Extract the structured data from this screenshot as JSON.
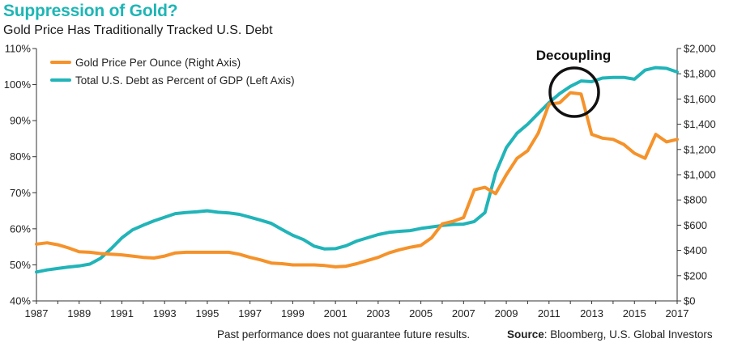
{
  "title": "Suppression of Gold?",
  "subtitle": "Gold Price Has Traditionally Tracked U.S. Debt",
  "footnote": "Past performance does not guarantee future results.",
  "source_label": "Source",
  "source_text": ": Bloomberg, U.S. Global Investors",
  "colors": {
    "title": "#1fb5b5",
    "gold": "#f5922a",
    "debt": "#21b4b8",
    "axis": "#333333"
  },
  "chart_data": {
    "type": "line",
    "annotation": "Decoupling",
    "x_ticks": [
      "1987",
      "1989",
      "1991",
      "1993",
      "1995",
      "1997",
      "1999",
      "2001",
      "2003",
      "2005",
      "2007",
      "2009",
      "2011",
      "2013",
      "2015",
      "2017"
    ],
    "left_axis": {
      "ylim": [
        40,
        110
      ],
      "ticks": [
        "40%",
        "50%",
        "60%",
        "70%",
        "80%",
        "90%",
        "100%",
        "110%"
      ]
    },
    "right_axis": {
      "ylim": [
        0,
        2000
      ],
      "ticks": [
        "$0",
        "$200",
        "$400",
        "$600",
        "$800",
        "$1,000",
        "$1,200",
        "$1,400",
        "$1,600",
        "$1,800",
        "$2,000"
      ]
    },
    "series": [
      {
        "name": "Gold Price Per Ounce (Right Axis)",
        "axis": "right",
        "x": [
          1987,
          1987.5,
          1988,
          1988.5,
          1989,
          1989.5,
          1990,
          1990.5,
          1991,
          1991.5,
          1992,
          1992.5,
          1993,
          1993.5,
          1994,
          1994.5,
          1995,
          1995.5,
          1996,
          1996.5,
          1997,
          1997.5,
          1998,
          1998.5,
          1999,
          1999.5,
          2000,
          2000.5,
          2001,
          2001.5,
          2002,
          2002.5,
          2003,
          2003.5,
          2004,
          2004.5,
          2005,
          2005.5,
          2006,
          2006.5,
          2007,
          2007.5,
          2008,
          2008.5,
          2009,
          2009.5,
          2010,
          2010.5,
          2011,
          2011.5,
          2012,
          2012.5,
          2013,
          2013.5,
          2014,
          2014.5,
          2015,
          2015.5,
          2016,
          2016.5,
          2017
        ],
        "values": [
          450,
          460,
          445,
          420,
          390,
          385,
          375,
          370,
          365,
          355,
          345,
          340,
          355,
          380,
          385,
          385,
          385,
          385,
          385,
          370,
          345,
          325,
          300,
          295,
          285,
          285,
          285,
          280,
          270,
          275,
          295,
          320,
          345,
          380,
          405,
          425,
          440,
          500,
          610,
          630,
          660,
          880,
          900,
          850,
          1000,
          1130,
          1190,
          1330,
          1560,
          1570,
          1650,
          1640,
          1320,
          1290,
          1280,
          1240,
          1170,
          1130,
          1320,
          1260,
          1280
        ]
      },
      {
        "name": "Total U.S. Debt as Percent of GDP (Left Axis)",
        "axis": "left",
        "x": [
          1987,
          1987.5,
          1988,
          1988.5,
          1989,
          1989.5,
          1990,
          1990.5,
          1991,
          1991.5,
          1992,
          1992.5,
          1993,
          1993.5,
          1994,
          1994.5,
          1995,
          1995.5,
          1996,
          1996.5,
          1997,
          1997.5,
          1998,
          1998.5,
          1999,
          1999.5,
          2000,
          2000.5,
          2001,
          2001.5,
          2002,
          2002.5,
          2003,
          2003.5,
          2004,
          2004.5,
          2005,
          2005.5,
          2006,
          2006.5,
          2007,
          2007.5,
          2008,
          2008.5,
          2009,
          2009.5,
          2010,
          2010.5,
          2011,
          2011.5,
          2012,
          2012.5,
          2013,
          2013.5,
          2014,
          2014.5,
          2015,
          2015.5,
          2016,
          2016.5,
          2017
        ],
        "values": [
          48.0,
          48.6,
          49.0,
          49.4,
          49.7,
          50.2,
          51.8,
          54.5,
          57.5,
          59.7,
          61.0,
          62.2,
          63.2,
          64.2,
          64.5,
          64.7,
          65.0,
          64.6,
          64.4,
          64.0,
          63.2,
          62.4,
          61.5,
          59.8,
          58.2,
          57.0,
          55.2,
          54.4,
          54.5,
          55.3,
          56.6,
          57.5,
          58.4,
          59.0,
          59.3,
          59.5,
          60.1,
          60.5,
          60.9,
          61.2,
          61.3,
          62.0,
          64.5,
          75.5,
          82.5,
          86.5,
          89.0,
          92.0,
          95.0,
          97.5,
          99.5,
          101.0,
          100.8,
          101.8,
          102.0,
          102.0,
          101.5,
          104.0,
          104.7,
          104.5,
          103.5
        ]
      }
    ]
  }
}
